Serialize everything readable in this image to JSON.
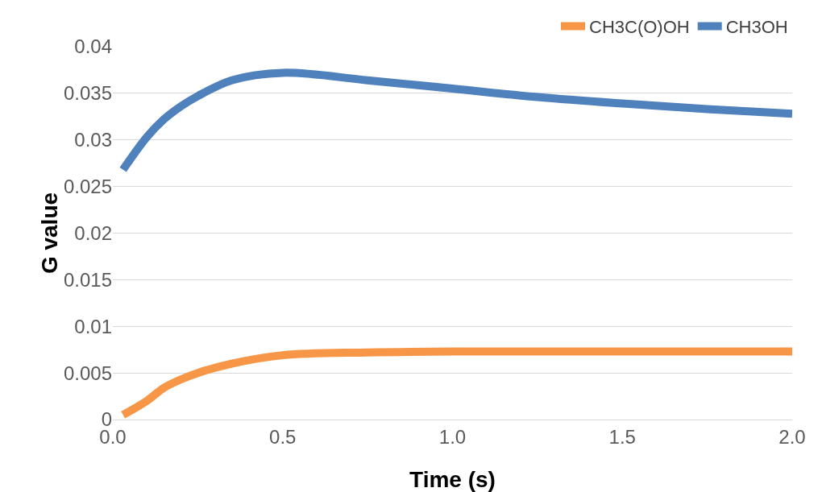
{
  "chart_data": {
    "type": "line",
    "xlabel": "Time (s)",
    "ylabel": "G value",
    "xlim": [
      0,
      2
    ],
    "xticks": [
      {
        "value": 0,
        "label": "0.0"
      },
      {
        "value": 0.5,
        "label": "0.5"
      },
      {
        "value": 1,
        "label": "1.0"
      },
      {
        "value": 1.5,
        "label": "1.5"
      },
      {
        "value": 2,
        "label": "2.0"
      }
    ],
    "ylim": [
      0,
      0.04
    ],
    "yticks": [
      0,
      0.005,
      0.01,
      0.015,
      0.02,
      0.025,
      0.03,
      0.035,
      0.04
    ],
    "grid": "y",
    "legend": "top right",
    "marker": "none",
    "line_style": "solid",
    "series": [
      {
        "name": "CH3C(O)OH",
        "color": "#f79646",
        "x": [
          0.03,
          0.1,
          0.15,
          0.2,
          0.25,
          0.35,
          0.5,
          0.75,
          1.0,
          1.25,
          1.5,
          1.75,
          2.0
        ],
        "values": [
          0.0005,
          0.002,
          0.0034,
          0.0043,
          0.005,
          0.006,
          0.0069,
          0.0072,
          0.0073,
          0.0073,
          0.0073,
          0.0073,
          0.0073
        ]
      },
      {
        "name": "CH3OH",
        "color": "#4f81bd",
        "x": [
          0.03,
          0.1,
          0.15,
          0.2,
          0.25,
          0.35,
          0.5,
          0.75,
          1.0,
          1.25,
          1.5,
          1.75,
          2.0
        ],
        "values": [
          0.0268,
          0.0303,
          0.0322,
          0.0336,
          0.0347,
          0.0364,
          0.0372,
          0.0364,
          0.0355,
          0.0346,
          0.0339,
          0.0333,
          0.0328
        ]
      }
    ]
  }
}
